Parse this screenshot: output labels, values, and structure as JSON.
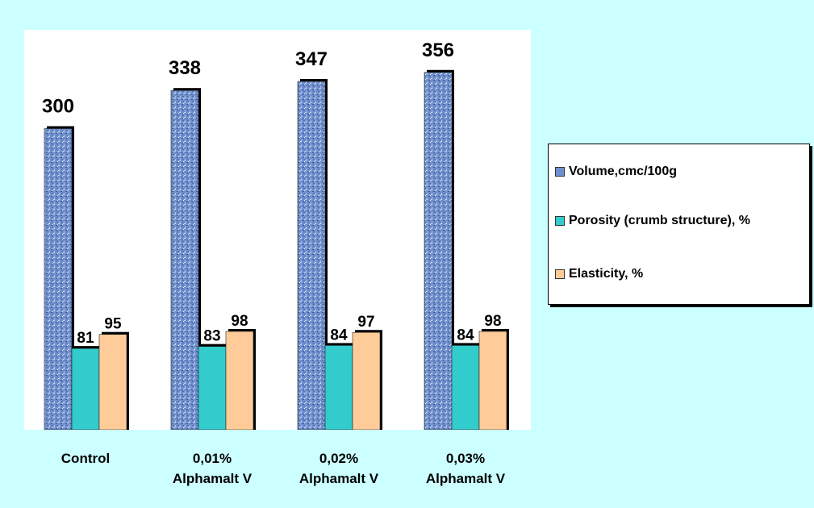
{
  "chart_data": {
    "type": "bar",
    "categories": [
      "Control",
      "0,01%\nAlphamalt V",
      "0,02%\nAlphamalt V",
      "0,03%\nAlphamalt V"
    ],
    "series": [
      {
        "name": "Volume,cmc/100g",
        "values": [
          300,
          338,
          347,
          356
        ],
        "color": "#6f8fcf",
        "pattern": "textured"
      },
      {
        "name": "Porosity (crumb structure), %",
        "values": [
          81,
          83,
          84,
          84
        ],
        "color": "#33cccc"
      },
      {
        "name": "Elasticity, %",
        "values": [
          95,
          98,
          97,
          98
        ],
        "color": "#ffcc99"
      }
    ],
    "data_labels": true,
    "ylim": [
      0,
      400
    ],
    "grid": false,
    "legend_position": "right",
    "colors": {
      "background": "#ccffff",
      "plot_background": "#ffffff"
    }
  }
}
